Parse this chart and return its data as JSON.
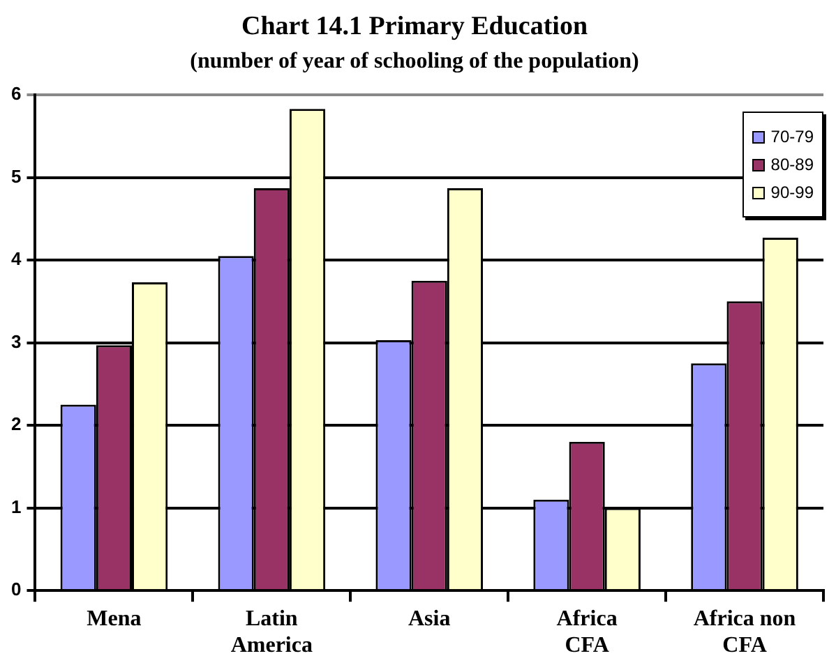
{
  "chart_data": {
    "type": "bar",
    "title": "Chart 14.1 Primary Education",
    "subtitle": "(number of year of schooling of the population)",
    "categories": [
      "Mena",
      "Latin America",
      "Asia",
      "Africa CFA",
      "Africa non CFA"
    ],
    "series": [
      {
        "name": "70-79",
        "color": "#9999ff",
        "values": [
          2.25,
          4.05,
          3.03,
          1.1,
          2.75
        ]
      },
      {
        "name": "80-89",
        "color": "#993366",
        "values": [
          2.97,
          4.87,
          3.75,
          1.8,
          3.5
        ]
      },
      {
        "name": "90-99",
        "color": "#ffffcc",
        "values": [
          3.73,
          5.83,
          4.87,
          1.0,
          4.27
        ]
      }
    ],
    "ylim": [
      0,
      6
    ],
    "yticks": [
      0,
      1,
      2,
      3,
      4,
      5,
      6
    ],
    "grid": "y",
    "legend": "top right"
  }
}
